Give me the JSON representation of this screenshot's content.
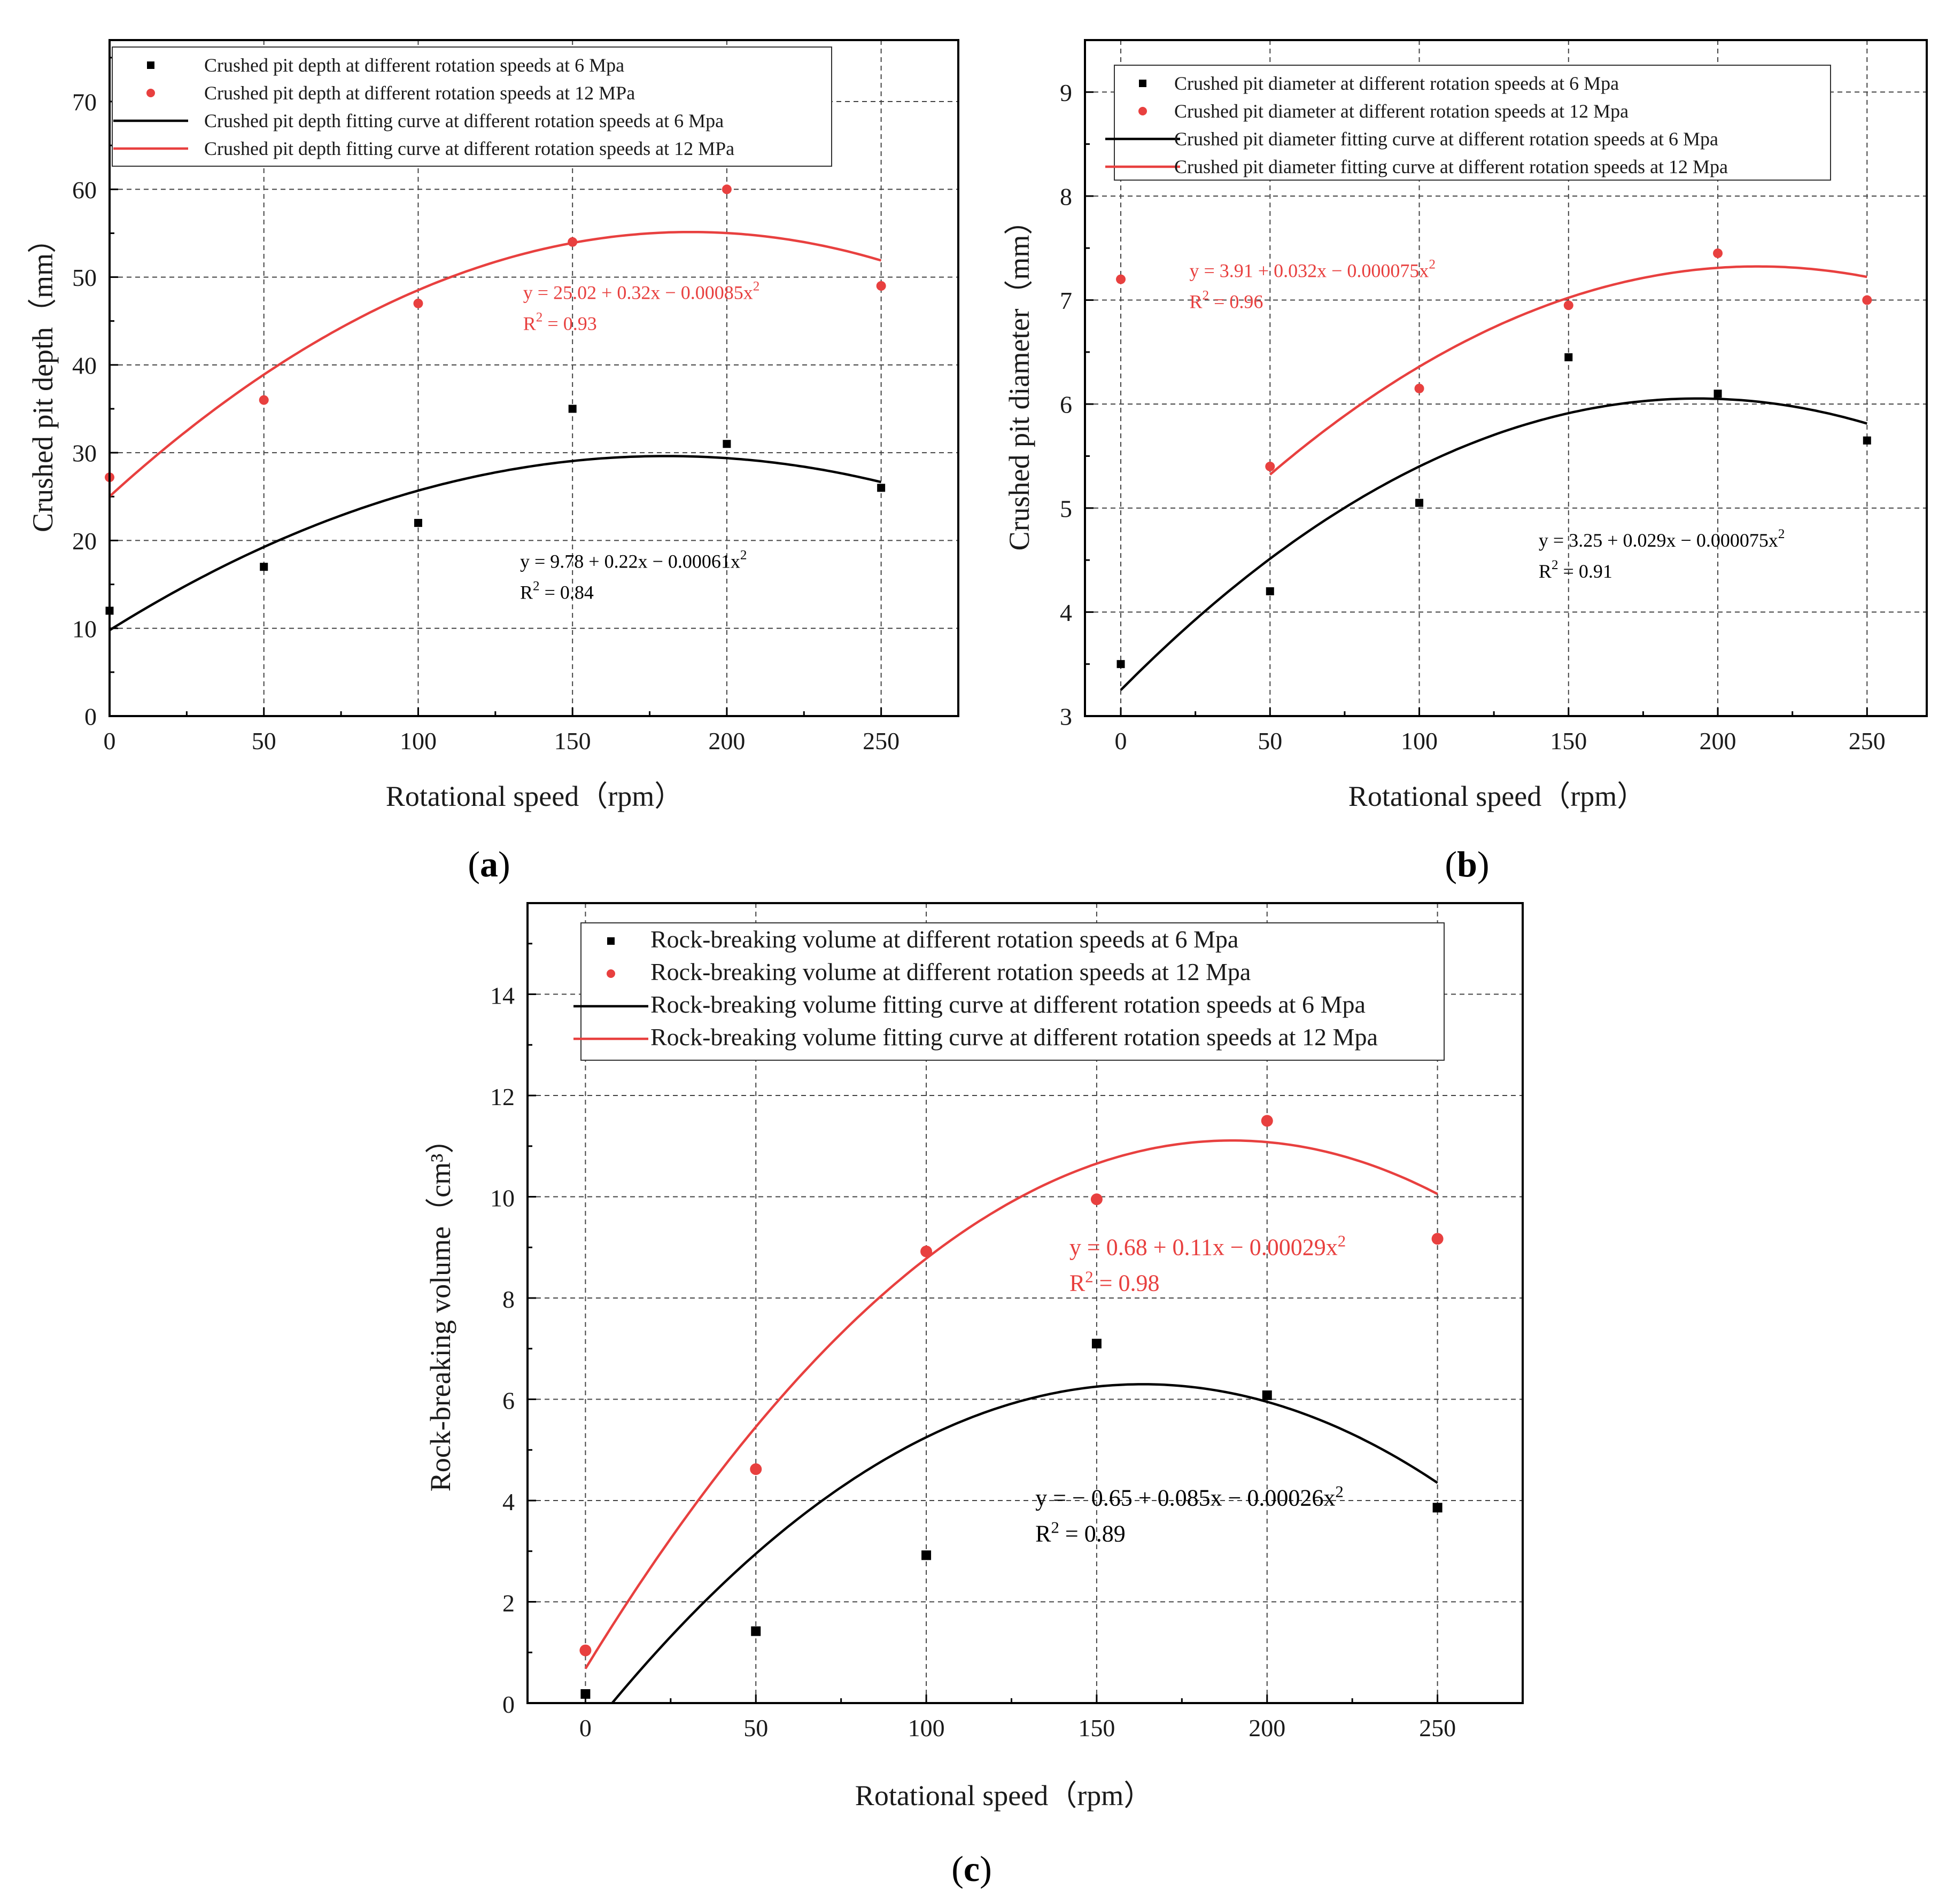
{
  "figure": {
    "title": ""
  },
  "colors": {
    "series_6mpa": "#000000",
    "series_12mpa": "#e8403f",
    "grid": "#444444",
    "axis": "#000000"
  },
  "chart_data": [
    {
      "panel": "a",
      "panel_label": "(a)",
      "type": "scatter",
      "xlabel": "Rotational speed（rpm）",
      "ylabel": "Crushed pit depth（mm）",
      "xlim": [
        0,
        275
      ],
      "ylim": [
        0,
        77
      ],
      "xticks": [
        0,
        50,
        100,
        150,
        200,
        250
      ],
      "yticks": [
        0,
        10,
        20,
        30,
        40,
        50,
        60,
        70
      ],
      "xtick_labels": [
        "0",
        "50",
        "100",
        "150",
        "200",
        "250"
      ],
      "ytick_labels": [
        "0",
        "10",
        "20",
        "30",
        "40",
        "50",
        "60",
        "70"
      ],
      "grid": true,
      "legend_position": "top-left",
      "series": [
        {
          "name": "Crushed pit depth at different rotation speeds at 6 Mpa",
          "kind": "scatter",
          "marker": "square",
          "color": "#000000",
          "x": [
            0,
            50,
            100,
            150,
            200,
            250
          ],
          "y": [
            12,
            17,
            22,
            35,
            31,
            26
          ]
        },
        {
          "name": "Crushed pit depth at different rotation speeds at 12 MPa",
          "kind": "scatter",
          "marker": "circle",
          "color": "#e8403f",
          "x": [
            0,
            50,
            100,
            150,
            200,
            250
          ],
          "y": [
            27.2,
            36,
            47,
            54,
            60,
            49
          ]
        },
        {
          "name": "Crushed pit depth fitting curve at different rotation speeds at 6 Mpa",
          "kind": "fit",
          "color": "#000000",
          "coef": [
            9.78,
            0.22,
            -0.00061
          ],
          "x_range": [
            0,
            250
          ]
        },
        {
          "name": "Crushed pit depth fitting curve at different rotation speeds at 12 MPa",
          "kind": "fit",
          "color": "#e8403f",
          "coef": [
            25.02,
            0.32,
            -0.00085
          ],
          "x_range": [
            0,
            250
          ]
        }
      ],
      "annotations": [
        {
          "color": "#000000",
          "eq_main": "y = 9.78 + 0.22x − 0.00061x",
          "eq_sup": "2",
          "r2": " = 0.84",
          "anchor_x": 133,
          "anchor_y": 16.9
        },
        {
          "color": "#e8403f",
          "eq_main": "y = 25.02 + 0.32x − 0.00085x",
          "eq_sup": "2",
          "r2": " = 0.93",
          "anchor_x": 134,
          "anchor_y": 47.5
        }
      ]
    },
    {
      "panel": "b",
      "panel_label": "(b)",
      "type": "scatter",
      "xlabel": "Rotational speed（rpm）",
      "ylabel": "Crushed pit diameter（mm）",
      "xlim": [
        -12,
        270
      ],
      "ylim": [
        3,
        9.5
      ],
      "xticks": [
        0,
        50,
        100,
        150,
        200,
        250
      ],
      "yticks": [
        3,
        4,
        5,
        6,
        7,
        8,
        9
      ],
      "xtick_labels": [
        "0",
        "50",
        "100",
        "150",
        "200",
        "250"
      ],
      "ytick_labels": [
        "3",
        "4",
        "5",
        "6",
        "7",
        "8",
        "9"
      ],
      "grid": true,
      "legend_position": "top-left",
      "series": [
        {
          "name": "Crushed pit diameter at different rotation speeds at 6 Mpa",
          "kind": "scatter",
          "marker": "square",
          "color": "#000000",
          "x": [
            0,
            50,
            100,
            150,
            200,
            250
          ],
          "y": [
            3.5,
            4.2,
            5.05,
            6.45,
            6.1,
            5.65
          ]
        },
        {
          "name": "Crushed pit diameter at different rotation speeds at 12 Mpa",
          "kind": "scatter",
          "marker": "circle",
          "color": "#e8403f",
          "x": [
            0,
            50,
            100,
            150,
            200,
            250
          ],
          "y": [
            7.2,
            5.4,
            6.15,
            6.95,
            7.45,
            7.0
          ]
        },
        {
          "name": "Crushed pit diameter fitting curve at different rotation speeds at 6 Mpa",
          "kind": "fit",
          "color": "#000000",
          "coef": [
            3.25,
            0.029,
            -7.5e-05
          ],
          "x_range": [
            0,
            250
          ]
        },
        {
          "name": "Crushed pit diameter fitting curve at different rotation speeds at 12 Mpa",
          "kind": "fit",
          "color": "#e8403f",
          "coef": [
            3.91,
            0.032,
            -7.5e-05
          ],
          "x_range": [
            50,
            250
          ]
        }
      ],
      "annotations": [
        {
          "color": "#000000",
          "eq_main": "y = 3.25 + 0.029x − 0.000075x",
          "eq_sup": "2",
          "r2": " = 0.91",
          "anchor_x": 140,
          "anchor_y": 4.63
        },
        {
          "color": "#e8403f",
          "eq_main": "y = 3.91 + 0.032x − 0.000075x",
          "eq_sup": "2",
          "r2": " = 0.96",
          "anchor_x": 23,
          "anchor_y": 7.22
        }
      ]
    },
    {
      "panel": "c",
      "panel_label": "(c)",
      "type": "scatter",
      "xlabel": "Rotational speed（rpm）",
      "ylabel": "Rock-breaking volume（cm³）",
      "xlim": [
        -17,
        275
      ],
      "ylim": [
        0,
        15.8
      ],
      "xticks": [
        0,
        50,
        100,
        150,
        200,
        250
      ],
      "yticks": [
        0,
        2,
        4,
        6,
        8,
        10,
        12,
        14
      ],
      "xtick_labels": [
        "0",
        "50",
        "100",
        "150",
        "200",
        "250"
      ],
      "ytick_labels": [
        "0",
        "2",
        "4",
        "6",
        "8",
        "10",
        "12",
        "14"
      ],
      "grid": true,
      "legend_position": "top-left",
      "series": [
        {
          "name": "Rock-breaking volume at different rotation speeds at 6 Mpa",
          "kind": "scatter",
          "marker": "square",
          "color": "#000000",
          "x": [
            0,
            50,
            100,
            150,
            200,
            250
          ],
          "y": [
            0.18,
            1.42,
            2.92,
            7.1,
            6.08,
            3.86
          ]
        },
        {
          "name": "Rock-breaking volume at different rotation speeds at 12 Mpa",
          "kind": "scatter",
          "marker": "circle",
          "color": "#e8403f",
          "x": [
            0,
            50,
            100,
            150,
            200,
            250
          ],
          "y": [
            1.04,
            4.62,
            8.92,
            9.95,
            11.5,
            9.17
          ]
        },
        {
          "name": "Rock-breaking volume fitting curve at different rotation speeds at 6 Mpa",
          "kind": "fit",
          "color": "#000000",
          "coef": [
            -0.65,
            0.085,
            -0.00026
          ],
          "x_range": [
            7.8,
            250
          ]
        },
        {
          "name": "Rock-breaking volume fitting curve at different rotation speeds at 12 Mpa",
          "kind": "fit",
          "color": "#e8403f",
          "coef": [
            0.68,
            0.11,
            -0.00029
          ],
          "x_range": [
            0,
            250
          ]
        }
      ],
      "annotations": [
        {
          "color": "#000000",
          "eq_main": "y = − 0.65 + 0.085x − 0.00026x",
          "eq_sup": "2",
          "r2": " = 0.89",
          "anchor_x": 132,
          "anchor_y": 3.9
        },
        {
          "color": "#e8403f",
          "eq_main": "y = 0.68 + 0.11x − 0.00029x",
          "eq_sup": "2",
          "r2": " = 0.98",
          "anchor_x": 142,
          "anchor_y": 8.85
        }
      ]
    }
  ]
}
